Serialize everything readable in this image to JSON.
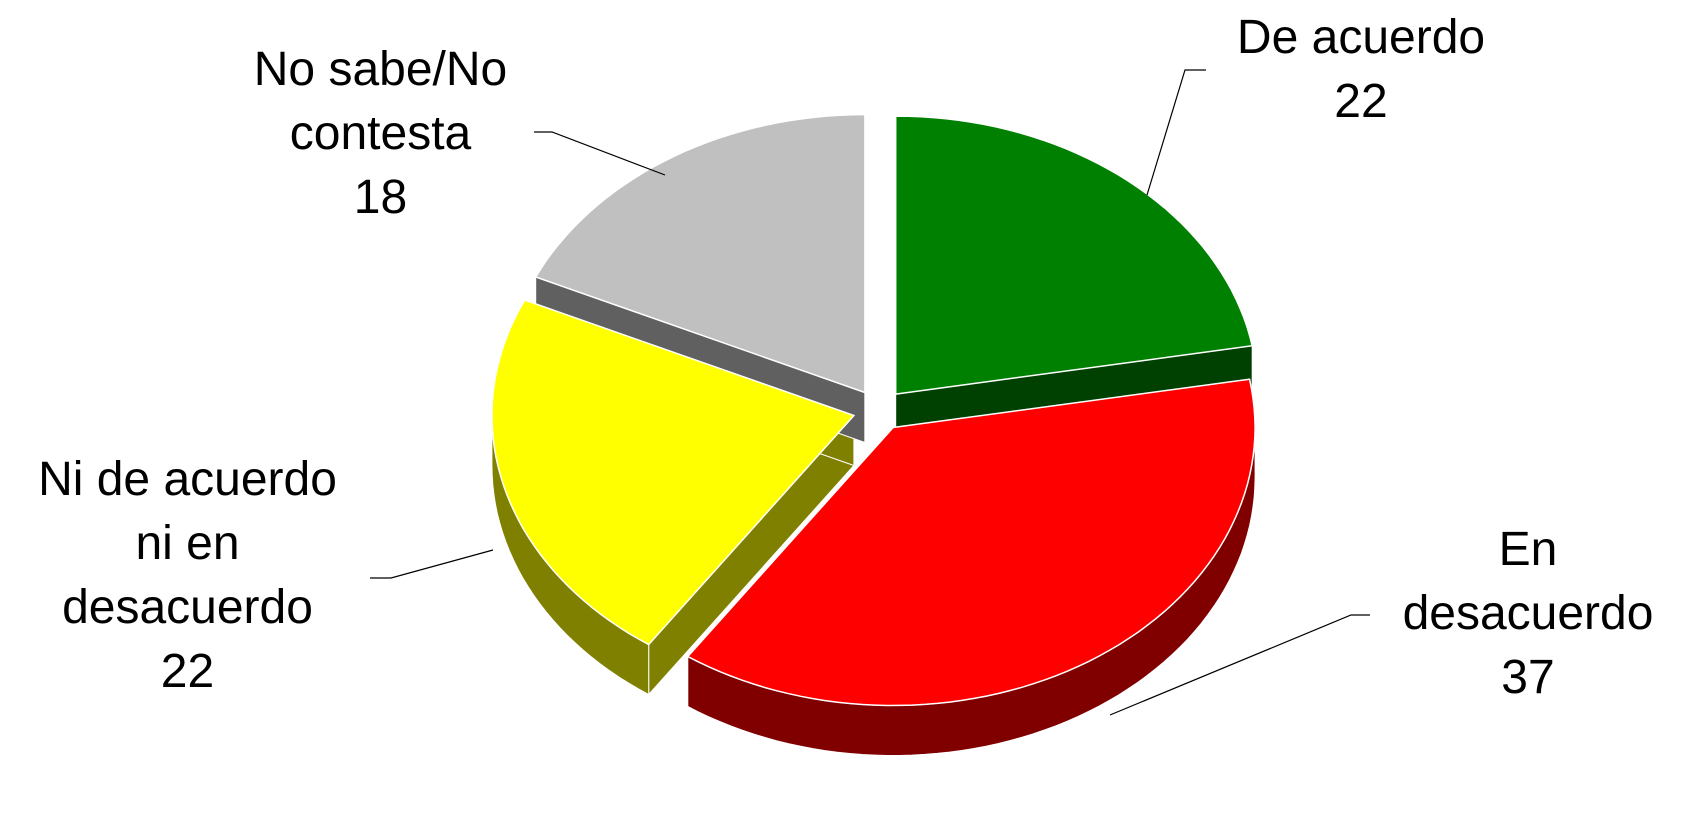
{
  "chart_data": {
    "type": "pie",
    "categories": [
      "De acuerdo",
      "En desacuerdo",
      "Ni de acuerdo ni en desacuerdo",
      "No sabe/No contesta"
    ],
    "values": [
      22,
      37,
      22,
      18
    ],
    "colors": [
      "#008000",
      "#ff0000",
      "#ffff00",
      "#c0c0c0"
    ],
    "side_colors": [
      "#004000",
      "#800000",
      "#808000",
      "#606060"
    ],
    "three_d": true,
    "exploded": true
  }
}
